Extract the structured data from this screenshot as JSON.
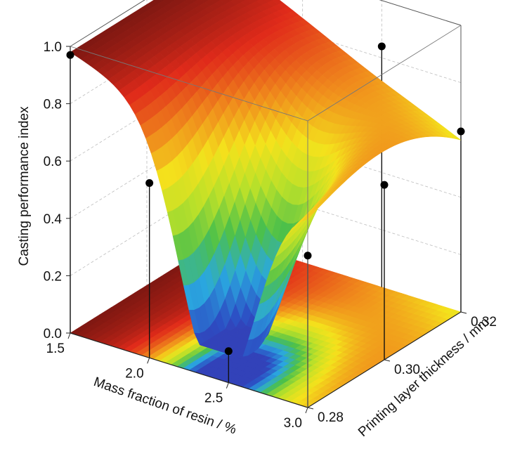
{
  "chart_data": {
    "type": "surface3d",
    "title": "",
    "xlabel": "Mass fraction of resin / %",
    "ylabel": "Printing layer thickness / mm",
    "zlabel": "Casting performance index",
    "x_ticks": [
      "1.5",
      "2.0",
      "2.5",
      "3.0"
    ],
    "y_ticks": [
      "0.28",
      "0.30",
      "0.32"
    ],
    "z_ticks": [
      "0.0",
      "0.2",
      "0.4",
      "0.6",
      "0.8",
      "1.0"
    ],
    "xlim": [
      1.5,
      3.0
    ],
    "ylim": [
      0.28,
      0.32
    ],
    "zlim": [
      0.0,
      1.0
    ],
    "colormap": [
      "#4b0f8f",
      "#2c4fc4",
      "#2aa8e0",
      "#4cc04a",
      "#b8e02a",
      "#f4e21c",
      "#f08a1c",
      "#e02a1a",
      "#6b1410"
    ],
    "experimental_points": [
      {
        "x": 1.5,
        "y": 0.28,
        "z": 0.97
      },
      {
        "x": 2.0,
        "y": 0.28,
        "z": 0.61
      },
      {
        "x": 2.5,
        "y": 0.28,
        "z": 0.11
      },
      {
        "x": 3.0,
        "y": 0.28,
        "z": 0.53
      },
      {
        "x": 2.5,
        "y": 0.32,
        "z": 0.84
      },
      {
        "x": 3.0,
        "y": 0.3,
        "z": 0.61
      },
      {
        "x": 3.0,
        "y": 0.32,
        "z": 0.63
      }
    ],
    "grid": true
  }
}
